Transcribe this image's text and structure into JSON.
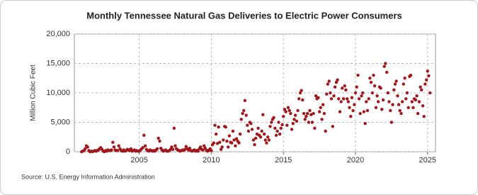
{
  "chart_data": {
    "type": "scatter",
    "title": "Monthly Tennessee Natural Gas Deliveries to Electric Power Consumers",
    "y_label": "Million Cubic Feet",
    "source": "Source: U.S. Energy Information Administration",
    "color": "#a0181c",
    "grid": true,
    "xlim": [
      2000.5,
      2025.55
    ],
    "ylim": [
      0,
      20000
    ],
    "xticks": [
      2005,
      2010,
      2015,
      2020,
      2025
    ],
    "yticks": [
      0,
      {
        "value": 5000,
        "label": "5,000"
      },
      {
        "value": 10000,
        "label": "10,000"
      },
      {
        "value": 15000,
        "label": "15,000"
      },
      {
        "value": 20000,
        "label": "20,000"
      }
    ],
    "x": [
      2001,
      2001.08,
      2001.17,
      2001.25,
      2001.33,
      2001.42,
      2001.5,
      2001.58,
      2001.67,
      2001.75,
      2001.83,
      2001.92,
      2002,
      2002.08,
      2002.17,
      2002.25,
      2002.33,
      2002.42,
      2002.5,
      2002.58,
      2002.67,
      2002.75,
      2002.83,
      2002.92,
      2003,
      2003.08,
      2003.17,
      2003.25,
      2003.33,
      2003.42,
      2003.5,
      2003.58,
      2003.67,
      2003.75,
      2003.83,
      2003.92,
      2004,
      2004.08,
      2004.17,
      2004.25,
      2004.33,
      2004.42,
      2004.5,
      2004.58,
      2004.67,
      2004.75,
      2004.83,
      2004.92,
      2005,
      2005.08,
      2005.17,
      2005.25,
      2005.33,
      2005.42,
      2005.5,
      2005.58,
      2005.67,
      2005.75,
      2005.83,
      2005.92,
      2006,
      2006.08,
      2006.17,
      2006.25,
      2006.33,
      2006.42,
      2006.5,
      2006.58,
      2006.67,
      2006.75,
      2006.83,
      2006.92,
      2007,
      2007.08,
      2007.17,
      2007.25,
      2007.33,
      2007.42,
      2007.5,
      2007.58,
      2007.67,
      2007.75,
      2007.83,
      2007.92,
      2008,
      2008.08,
      2008.17,
      2008.25,
      2008.33,
      2008.42,
      2008.5,
      2008.58,
      2008.67,
      2008.75,
      2008.83,
      2008.92,
      2009,
      2009.08,
      2009.17,
      2009.25,
      2009.33,
      2009.42,
      2009.5,
      2009.58,
      2009.67,
      2009.75,
      2009.83,
      2009.92,
      2010,
      2010.08,
      2010.17,
      2010.25,
      2010.33,
      2010.42,
      2010.5,
      2010.58,
      2010.67,
      2010.75,
      2010.83,
      2010.92,
      2011,
      2011.08,
      2011.17,
      2011.25,
      2011.33,
      2011.42,
      2011.5,
      2011.58,
      2011.67,
      2011.75,
      2011.83,
      2011.92,
      2012,
      2012.08,
      2012.17,
      2012.25,
      2012.33,
      2012.42,
      2012.5,
      2012.58,
      2012.67,
      2012.75,
      2012.83,
      2012.92,
      2013,
      2013.08,
      2013.17,
      2013.25,
      2013.33,
      2013.42,
      2013.5,
      2013.58,
      2013.67,
      2013.75,
      2013.83,
      2013.92,
      2014,
      2014.08,
      2014.17,
      2014.25,
      2014.33,
      2014.42,
      2014.5,
      2014.58,
      2014.67,
      2014.75,
      2014.83,
      2014.92,
      2015,
      2015.08,
      2015.17,
      2015.25,
      2015.33,
      2015.42,
      2015.5,
      2015.58,
      2015.67,
      2015.75,
      2015.83,
      2015.92,
      2016,
      2016.08,
      2016.17,
      2016.25,
      2016.33,
      2016.42,
      2016.5,
      2016.58,
      2016.67,
      2016.75,
      2016.83,
      2016.92,
      2017,
      2017.08,
      2017.17,
      2017.25,
      2017.33,
      2017.42,
      2017.5,
      2017.58,
      2017.67,
      2017.75,
      2017.83,
      2017.92,
      2018,
      2018.08,
      2018.17,
      2018.25,
      2018.33,
      2018.42,
      2018.5,
      2018.58,
      2018.67,
      2018.75,
      2018.83,
      2018.92,
      2019,
      2019.08,
      2019.17,
      2019.25,
      2019.33,
      2019.42,
      2019.5,
      2019.58,
      2019.67,
      2019.75,
      2019.83,
      2019.92,
      2020,
      2020.08,
      2020.17,
      2020.25,
      2020.33,
      2020.42,
      2020.5,
      2020.58,
      2020.67,
      2020.75,
      2020.83,
      2020.92,
      2021,
      2021.08,
      2021.17,
      2021.25,
      2021.33,
      2021.42,
      2021.5,
      2021.58,
      2021.67,
      2021.75,
      2021.83,
      2021.92,
      2022,
      2022.08,
      2022.17,
      2022.25,
      2022.33,
      2022.42,
      2022.5,
      2022.58,
      2022.67,
      2022.75,
      2022.83,
      2022.92,
      2023,
      2023.08,
      2023.17,
      2023.25,
      2023.33,
      2023.42,
      2023.5,
      2023.58,
      2023.67,
      2023.75,
      2023.83,
      2023.92,
      2024,
      2024.08,
      2024.17,
      2024.25,
      2024.33,
      2024.42,
      2024.5,
      2024.58,
      2024.67,
      2024.75,
      2024.83,
      2024.92,
      2025,
      2025.08,
      2025.17
    ],
    "values": [
      0,
      100,
      200,
      500,
      1000,
      800,
      200,
      0,
      100,
      0,
      100,
      200,
      100,
      200,
      300,
      500,
      700,
      400,
      100,
      0,
      200,
      100,
      300,
      200,
      200,
      300,
      1600,
      800,
      300,
      200,
      200,
      1000,
      500,
      200,
      100,
      300,
      100,
      200,
      400,
      300,
      200,
      500,
      100,
      200,
      300,
      100,
      200,
      100,
      100,
      300,
      500,
      700,
      2800,
      1000,
      400,
      200,
      100,
      300,
      200,
      100,
      200,
      100,
      300,
      500,
      2300,
      1800,
      600,
      300,
      100,
      200,
      300,
      100,
      100,
      200,
      400,
      800,
      400,
      4000,
      1000,
      500,
      300,
      200,
      100,
      200,
      300,
      200,
      400,
      900,
      500,
      300,
      600,
      200,
      100,
      200,
      300,
      100,
      200,
      100,
      500,
      800,
      400,
      300,
      1000,
      600,
      200,
      100,
      300,
      500,
      200,
      1200,
      1500,
      4500,
      3000,
      1400,
      4200,
      1600,
      400,
      800,
      2000,
      4300,
      4200,
      1800,
      800,
      2700,
      1600,
      1500,
      3500,
      2000,
      1000,
      2200,
      1800,
      1500,
      3000,
      5500,
      6500,
      7000,
      8700,
      6200,
      4500,
      3500,
      5000,
      4800,
      3800,
      2000,
      1200,
      2300,
      3000,
      4000,
      2800,
      2500,
      3500,
      6300,
      3000,
      2000,
      1500,
      2500,
      2000,
      4300,
      5000,
      5500,
      5800,
      4000,
      2800,
      3500,
      5000,
      3000,
      4000,
      4600,
      6000,
      7200,
      6800,
      4500,
      7500,
      7000,
      6500,
      3800,
      4800,
      5500,
      6200,
      5200,
      7000,
      9000,
      10000,
      10400,
      8800,
      6500,
      5500,
      6000,
      6500,
      5000,
      7000,
      6300,
      5000,
      6500,
      4000,
      9500,
      9000,
      9200,
      6800,
      7500,
      5500,
      8000,
      6500,
      3500,
      9800,
      11500,
      12000,
      10000,
      9000,
      4300,
      9500,
      11000,
      11800,
      12200,
      9000,
      6800,
      8500,
      10800,
      9000,
      11200,
      10500,
      9000,
      8500,
      7500,
      6000,
      9200,
      7000,
      8000,
      10000,
      11000,
      13000,
      9000,
      6500,
      9500,
      10000,
      6800,
      4800,
      8500,
      7000,
      9000,
      12500,
      11800,
      10000,
      13000,
      11200,
      7500,
      9500,
      8500,
      11000,
      10800,
      7200,
      8800,
      14500,
      15000,
      13500,
      10000,
      8500,
      7000,
      5000,
      8000,
      10500,
      11500,
      12000,
      9500,
      8000,
      7000,
      6500,
      8500,
      11500,
      12500,
      9000,
      10000,
      7500,
      12800,
      13000,
      8500,
      7500,
      9000,
      8800,
      9500,
      6500,
      8500,
      11000,
      10500,
      7800,
      6000,
      11500,
      12200,
      13700,
      12900,
      10000
    ]
  }
}
